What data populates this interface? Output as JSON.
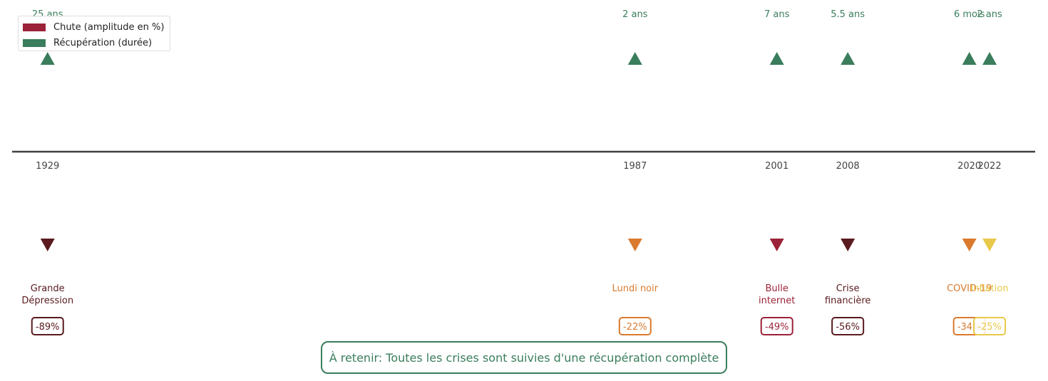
{
  "colors": {
    "axis": "#404040",
    "recovery": "#3a7d5c",
    "drop_legend": "#9b2238",
    "year_text": "#444444"
  },
  "legend": {
    "drop_label": "Chute (amplitude en %)",
    "recovery_label": "Récupération (durée)"
  },
  "takeaway": "À retenir: Toutes les crises sont suivies d'une récupération complète",
  "chart_data": {
    "type": "timeline",
    "x_range": [
      1925.5,
      2026.5
    ],
    "events": [
      {
        "year": "1929",
        "name": [
          "Grande",
          "Dépression"
        ],
        "drop": "-89%",
        "recovery": "25 ans",
        "color": "#5a1a1e"
      },
      {
        "year": "1987",
        "name": [
          "Lundi noir"
        ],
        "drop": "-22%",
        "recovery": "2 ans",
        "color": "#d97a2e"
      },
      {
        "year": "2001",
        "name": [
          "Bulle",
          "internet"
        ],
        "drop": "-49%",
        "recovery": "7 ans",
        "color": "#9b2238"
      },
      {
        "year": "2008",
        "name": [
          "Crise",
          "financière"
        ],
        "drop": "-56%",
        "recovery": "5.5 ans",
        "color": "#5a1a1e"
      },
      {
        "year": "2020",
        "name": [
          "COVID-19"
        ],
        "drop": "-34%",
        "recovery": "6 mois",
        "color": "#d97a2e"
      },
      {
        "year": "2022",
        "name": [
          "Inflation"
        ],
        "drop": "-25%",
        "recovery": "2 ans",
        "color": "#e8c94a"
      }
    ]
  }
}
